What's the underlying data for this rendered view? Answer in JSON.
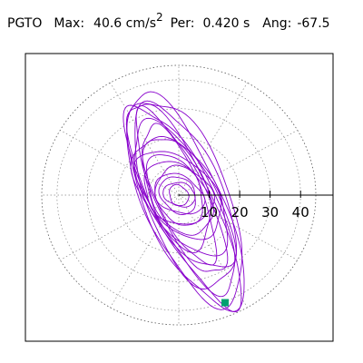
{
  "header": {
    "station": "PGTO",
    "max_label": "Max:",
    "max_value": "40.6 cm/s",
    "max_unit_exponent": "2",
    "period_label": "Per:",
    "period_value": "0.420 s",
    "angle_label": "Ang:",
    "angle_value": "-67.5"
  },
  "chart_data": {
    "type": "line",
    "subtype": "polar-orbit",
    "title": "",
    "radial_ticks": [
      "10",
      "20",
      "30",
      "40"
    ],
    "radial_tick_values": [
      10,
      20,
      30,
      40
    ],
    "rmax": 45,
    "grid": true,
    "gridlines_deg": [
      0,
      30,
      60,
      90,
      120,
      150,
      180,
      210,
      240,
      270,
      300,
      330
    ],
    "orbit_color": "#8800cc",
    "marker_color": "#00a070",
    "marker_point": {
      "x": 15.2,
      "y": -37.3
    },
    "orbit_tilt_deg": -67.5,
    "orbit_rings": [
      {
        "a": 40.0,
        "b": 12.6,
        "cx": 1.9,
        "cy": -2.3,
        "rot": -67.5
      },
      {
        "a": 39.0,
        "b": 9.8,
        "cx": 1.6,
        "cy": -2.7,
        "rot": -65.0
      },
      {
        "a": 37.6,
        "b": 14.2,
        "cx": 2.4,
        "cy": -1.6,
        "rot": -69.0
      },
      {
        "a": 35.5,
        "b": 10.4,
        "cx": 0.9,
        "cy": -1.2,
        "rot": -64.0
      },
      {
        "a": 33.4,
        "b": 12.8,
        "cx": 1.8,
        "cy": -0.8,
        "rot": -70.0
      },
      {
        "a": 31.0,
        "b": 8.4,
        "cx": 0.5,
        "cy": 0.2,
        "rot": -66.0
      },
      {
        "a": 28.2,
        "b": 11.2,
        "cx": 1.2,
        "cy": -0.6,
        "rot": -62.0
      },
      {
        "a": 25.6,
        "b": 7.6,
        "cx": 0.0,
        "cy": 0.5,
        "rot": -68.0
      },
      {
        "a": 22.8,
        "b": 11.6,
        "cx": 0.8,
        "cy": 0.0,
        "rot": -58.0
      },
      {
        "a": 20.4,
        "b": 9.4,
        "cx": -0.4,
        "cy": 0.8,
        "rot": -72.0
      },
      {
        "a": 17.8,
        "b": 10.6,
        "cx": 0.2,
        "cy": 0.4,
        "rot": -50.0
      },
      {
        "a": 15.2,
        "b": 8.8,
        "cx": 0.0,
        "cy": 0.0,
        "rot": -60.0
      },
      {
        "a": 12.4,
        "b": 9.6,
        "cx": -0.3,
        "cy": 0.6,
        "rot": -40.0
      },
      {
        "a": 10.6,
        "b": 7.4,
        "cx": 0.4,
        "cy": -0.2,
        "rot": -75.0
      },
      {
        "a": 8.8,
        "b": 6.2,
        "cx": 0.0,
        "cy": 0.3,
        "rot": -30.0
      },
      {
        "a": 7.0,
        "b": 5.4,
        "cx": -0.2,
        "cy": 0.0,
        "rot": -55.0
      },
      {
        "a": 5.4,
        "b": 4.0,
        "cx": 0.2,
        "cy": 0.2,
        "rot": -20.0
      },
      {
        "a": 3.8,
        "b": 3.0,
        "cx": 0.0,
        "cy": -0.1,
        "rot": -65.0
      }
    ]
  }
}
